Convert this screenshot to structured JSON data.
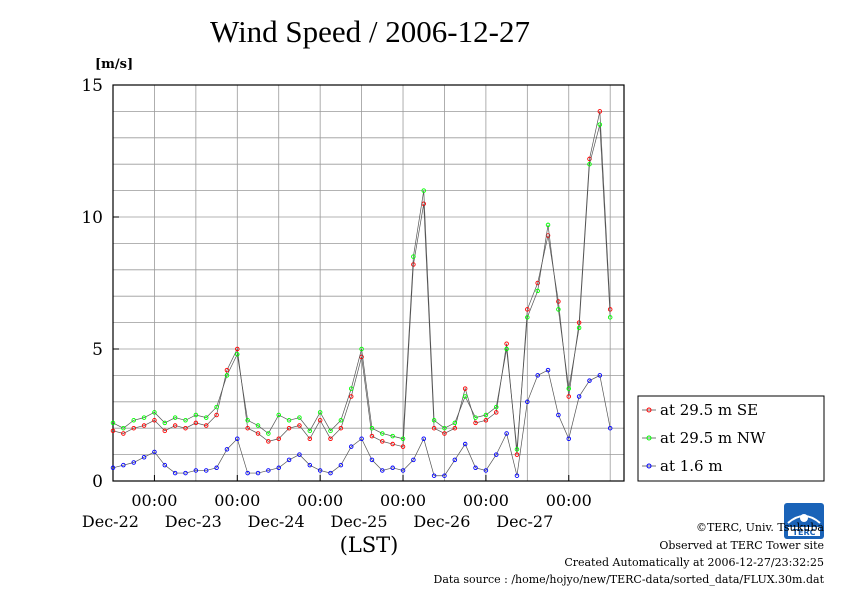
{
  "page": {
    "title": "Wind Speed / 2006-12-27",
    "footer": {
      "copyright": "©TERC, Univ. Tsukuba",
      "observed": "Observed at TERC Tower site",
      "created": "Created Automatically at 2006-12-27/23:32:25",
      "source": "Data source : /home/hojyo/new/TERC-data/sorted_data/FLUX.30m.dat"
    },
    "logo_text": "TERC"
  },
  "chart_data": {
    "type": "line",
    "title": "Wind Speed / 2006-12-27",
    "ylabel": "[m/s]",
    "xlabel": "(LST)",
    "ylim": [
      0,
      15
    ],
    "yticks": [
      0,
      5,
      10,
      15
    ],
    "x_tick_labels": [
      {
        "time": "00:00",
        "date": "Dec-22"
      },
      {
        "time": "00:00",
        "date": "Dec-23"
      },
      {
        "time": "00:00",
        "date": "Dec-24"
      },
      {
        "time": "00:00",
        "date": "Dec-25"
      },
      {
        "time": "00:00",
        "date": "Dec-26"
      },
      {
        "time": "00:00",
        "date": "Dec-27"
      }
    ],
    "grid": true,
    "legend_position": "right",
    "x_unit": "hours since Dec-21 12:00",
    "x": [
      0,
      3,
      6,
      9,
      12,
      15,
      18,
      21,
      24,
      27,
      30,
      33,
      36,
      39,
      42,
      45,
      48,
      51,
      54,
      57,
      60,
      63,
      66,
      69,
      72,
      75,
      78,
      81,
      84,
      87,
      90,
      93,
      96,
      99,
      102,
      105,
      108,
      111,
      114,
      117,
      120,
      123,
      126,
      129,
      132,
      135,
      138,
      141,
      144
    ],
    "series": [
      {
        "name": "at 29.5 m SE",
        "color": "#ff0000",
        "values": [
          1.9,
          1.8,
          2.0,
          2.1,
          2.3,
          1.9,
          2.1,
          2.0,
          2.2,
          2.1,
          2.5,
          4.2,
          5.0,
          2.0,
          1.8,
          1.5,
          1.6,
          2.0,
          2.1,
          1.6,
          2.3,
          1.6,
          2.0,
          3.2,
          4.7,
          1.7,
          1.5,
          1.4,
          1.3,
          8.2,
          10.5,
          2.0,
          1.8,
          2.0,
          3.5,
          2.2,
          2.3,
          2.6,
          5.2,
          1.0,
          6.5,
          7.5,
          9.3,
          6.8,
          3.2,
          6.0,
          12.2,
          14.0,
          6.5
        ]
      },
      {
        "name": "at 29.5 m NW",
        "color": "#00ff00",
        "values": [
          2.2,
          2.0,
          2.3,
          2.4,
          2.6,
          2.2,
          2.4,
          2.3,
          2.5,
          2.4,
          2.8,
          4.0,
          4.8,
          2.3,
          2.1,
          1.8,
          2.5,
          2.3,
          2.4,
          1.9,
          2.6,
          1.9,
          2.3,
          3.5,
          5.0,
          2.0,
          1.8,
          1.7,
          1.6,
          8.5,
          11.0,
          2.3,
          2.0,
          2.2,
          3.2,
          2.4,
          2.5,
          2.8,
          5.0,
          1.2,
          6.2,
          7.2,
          9.7,
          6.5,
          3.5,
          5.8,
          12.0,
          13.5,
          6.2
        ]
      },
      {
        "name": "at 1.6 m",
        "color": "#0000ff",
        "values": [
          0.5,
          0.6,
          0.7,
          0.9,
          1.1,
          0.6,
          0.3,
          0.3,
          0.4,
          0.4,
          0.5,
          1.2,
          1.6,
          0.3,
          0.3,
          0.4,
          0.5,
          0.8,
          1.0,
          0.6,
          0.4,
          0.3,
          0.6,
          1.3,
          1.6,
          0.8,
          0.4,
          0.5,
          0.4,
          0.8,
          1.6,
          0.2,
          0.2,
          0.8,
          1.4,
          0.5,
          0.4,
          1.0,
          1.8,
          0.2,
          3.0,
          4.0,
          4.2,
          2.5,
          1.6,
          3.2,
          3.8,
          4.0,
          2.0
        ]
      }
    ]
  }
}
